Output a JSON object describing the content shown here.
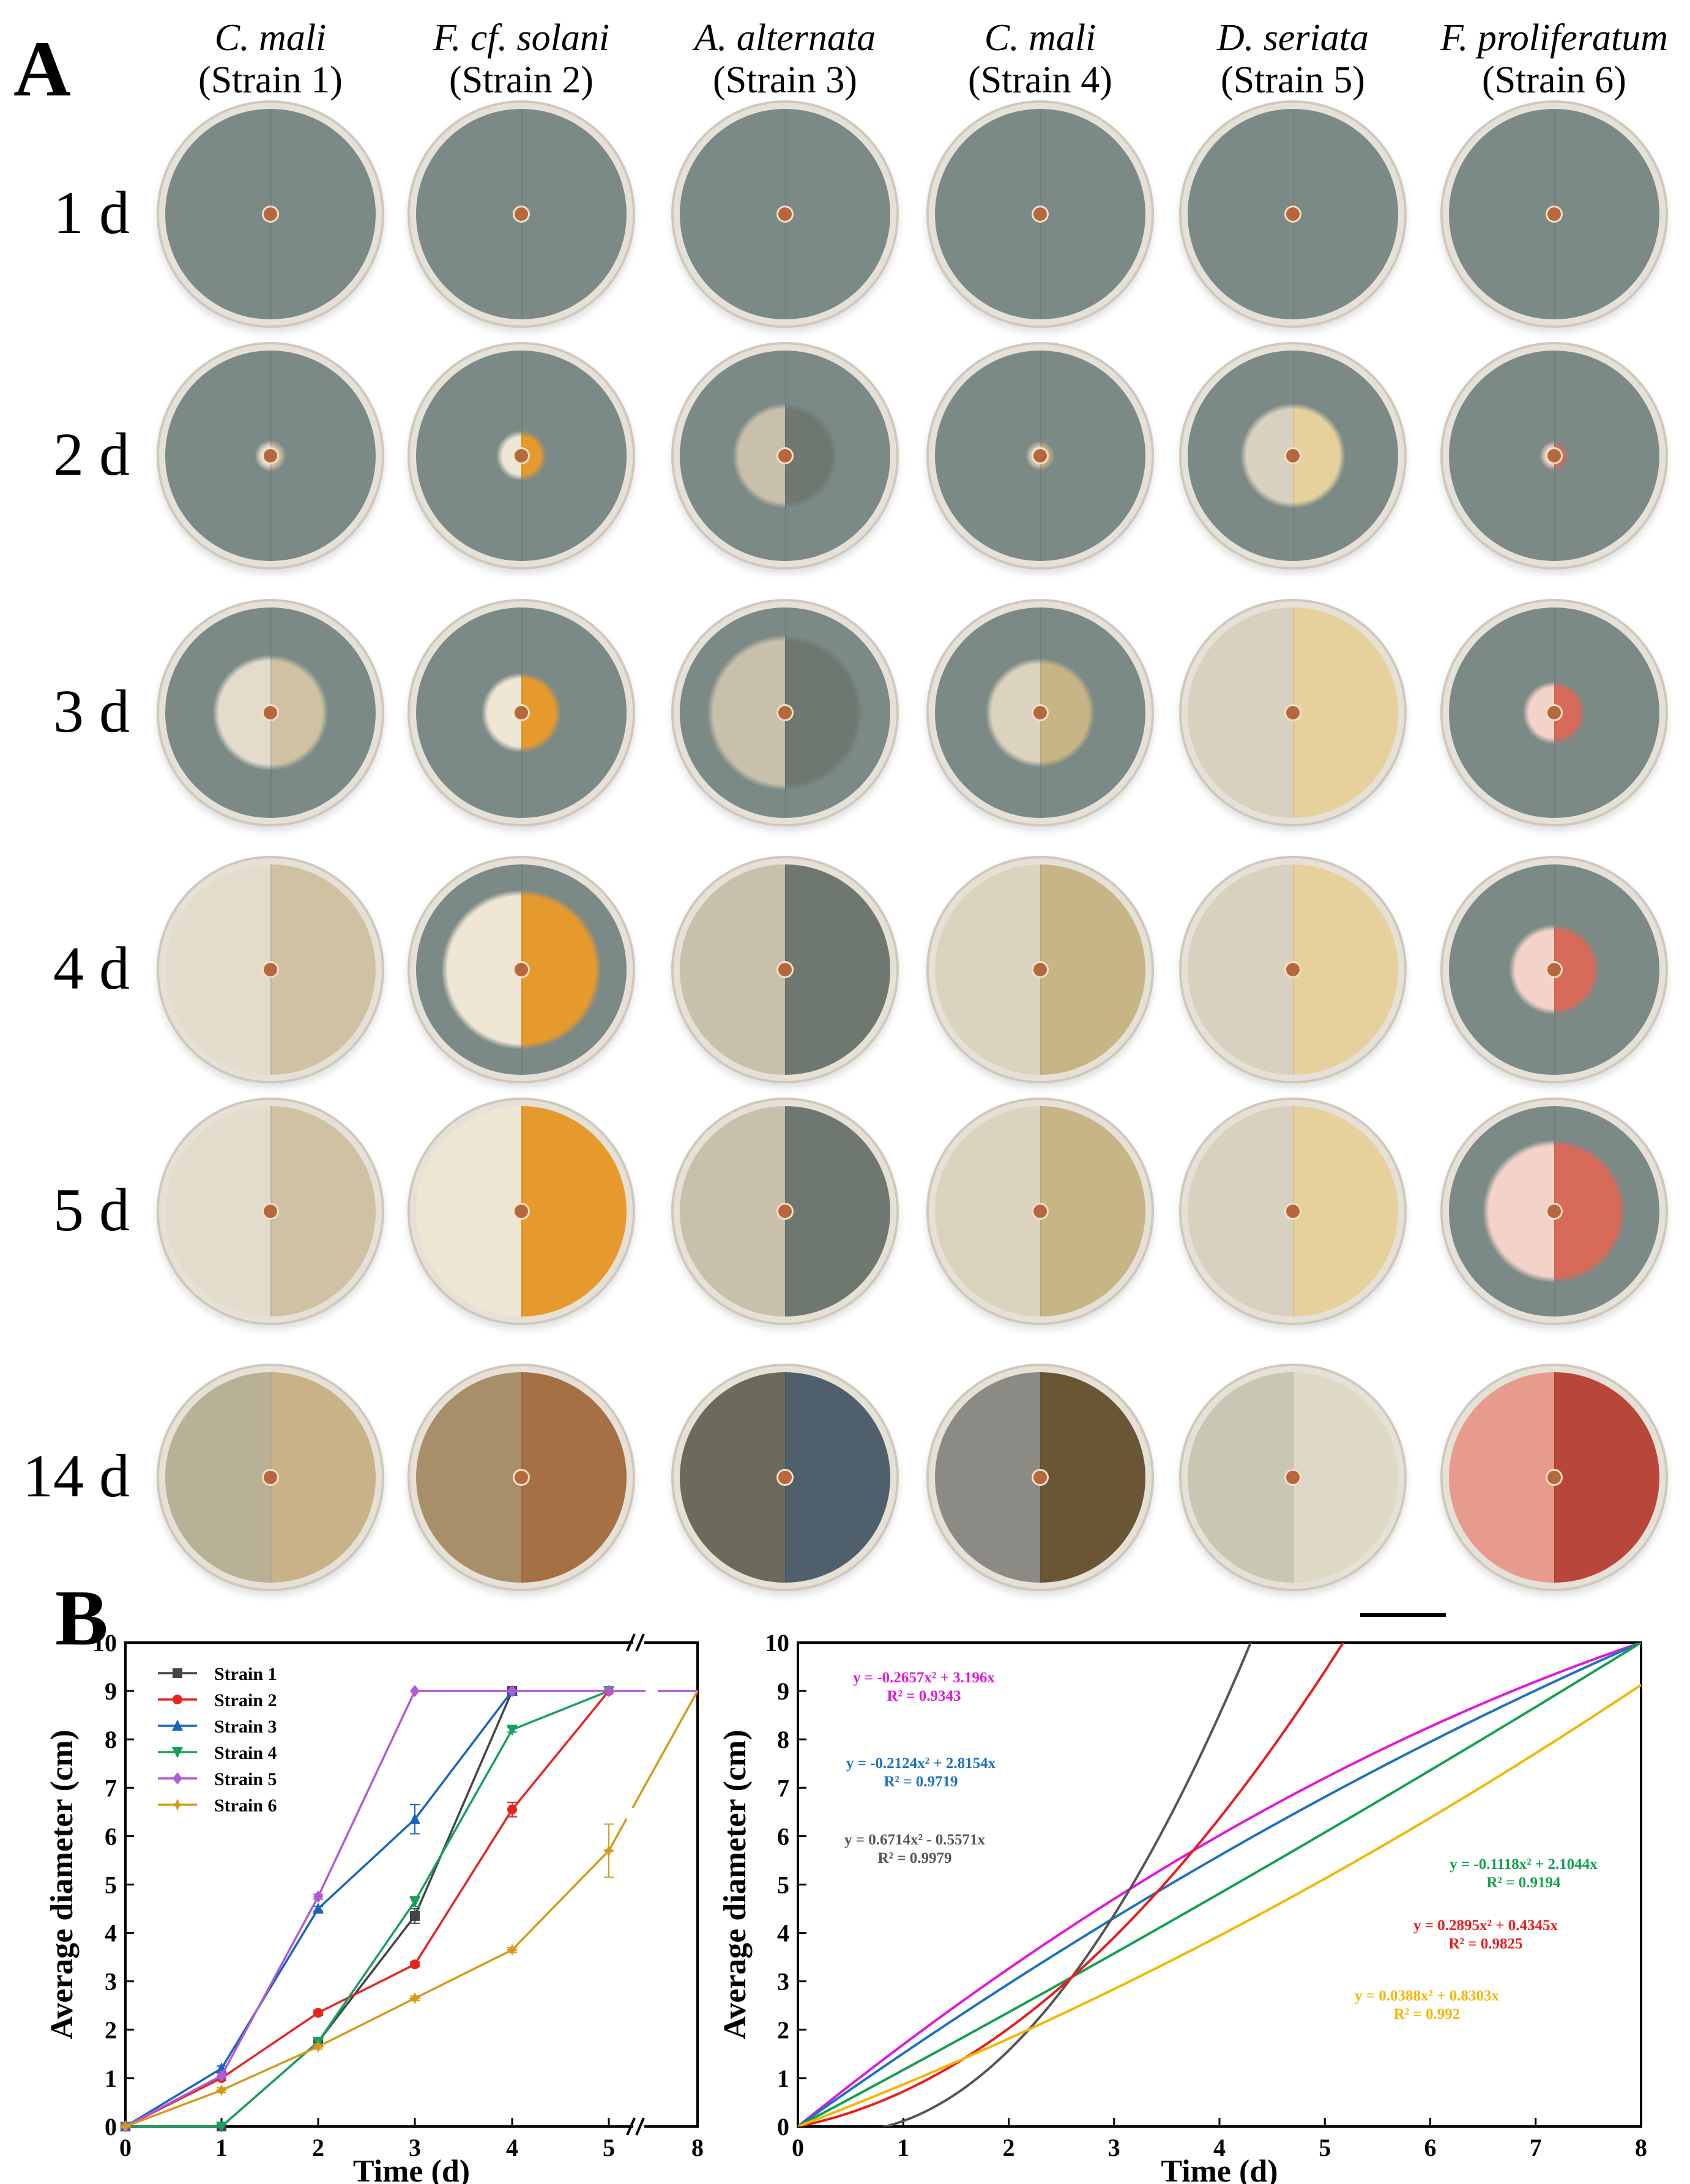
{
  "panel_a": {
    "letter": "A",
    "columns": [
      {
        "species": "C. mali",
        "strain": "(Strain 1)"
      },
      {
        "species": "F. cf. solani",
        "strain": "(Strain 2)"
      },
      {
        "species": "A. alternata",
        "strain": "(Strain 3)"
      },
      {
        "species": "C. mali",
        "strain": "(Strain 4)"
      },
      {
        "species": "D. seriata",
        "strain": "(Strain 5)"
      },
      {
        "species": "F. proliferatum",
        "strain": "(Strain 6)"
      }
    ],
    "rows": [
      "1 d",
      "2 d",
      "3 d",
      "4 d",
      "5 d",
      "14 d"
    ],
    "colony_colors": [
      {
        "front": "#e3dccd",
        "reverse": "#cfc1a2"
      },
      {
        "front": "#efe6d4",
        "reverse": "#e69a2d"
      },
      {
        "front": "#c9c0ab",
        "reverse": "#6f7870"
      },
      {
        "front": "#dcd3bf",
        "reverse": "#c8b585"
      },
      {
        "front": "#d9d1bf",
        "reverse": "#e6d19c"
      },
      {
        "front": "#f2d2c9",
        "reverse": "#d86a5a"
      }
    ],
    "day14_colors": [
      {
        "front": "#b9b195",
        "reverse": "#c9b287"
      },
      {
        "front": "#a98e6a",
        "reverse": "#a57043"
      },
      {
        "front": "#6e6a5b",
        "reverse": "#4f5f6c"
      },
      {
        "front": "#8b8a84",
        "reverse": "#6a5635"
      },
      {
        "front": "#c9c6b4",
        "reverse": "#ddd9c6"
      },
      {
        "front": "#e79b8d",
        "reverse": "#b8463b"
      }
    ],
    "medium_color": "#7b8a86",
    "growth_fraction": [
      [
        0.05,
        0.05,
        0.06,
        0.05,
        0.06,
        0.05
      ],
      [
        0.15,
        0.24,
        0.5,
        0.14,
        0.5,
        0.14
      ],
      [
        0.55,
        0.38,
        0.74,
        0.52,
        1.0,
        0.3
      ],
      [
        1.0,
        0.76,
        1.0,
        1.0,
        1.0,
        0.43
      ],
      [
        1.0,
        1.0,
        1.0,
        1.0,
        1.0,
        0.68
      ],
      [
        1.0,
        1.0,
        1.0,
        1.0,
        1.0,
        1.0
      ]
    ]
  },
  "panel_b": {
    "letter": "B",
    "chart_data": [
      {
        "type": "line",
        "xlabel": "Time (d)",
        "ylabel": "Average diameter (cm)",
        "xlim": [
          0,
          8
        ],
        "ylim": [
          0,
          10
        ],
        "x_ticks": [
          "0",
          "1",
          "2",
          "3",
          "4",
          "5",
          "8"
        ],
        "y_ticks": [
          "0",
          "1",
          "2",
          "3",
          "4",
          "5",
          "6",
          "7",
          "8",
          "9",
          "10"
        ],
        "axis_break": "between 5 and 8",
        "legend_position": "top-left",
        "series": [
          {
            "name": "Strain 1",
            "color": "#444444",
            "marker": "square",
            "x": [
              0,
              1,
              2,
              3,
              4
            ],
            "y": [
              0,
              0,
              1.75,
              4.35,
              9.0
            ],
            "err": [
              0,
              0,
              0.05,
              0.15,
              0
            ]
          },
          {
            "name": "Strain 2",
            "color": "#e8221f",
            "marker": "circle",
            "x": [
              0,
              1,
              2,
              3,
              4,
              5
            ],
            "y": [
              0,
              1.0,
              2.35,
              3.35,
              6.55,
              9.0
            ],
            "err": [
              0,
              0.05,
              0.05,
              0.05,
              0.15,
              0
            ]
          },
          {
            "name": "Strain 3",
            "color": "#1565c0",
            "marker": "triangle",
            "x": [
              0,
              1,
              2,
              3,
              4
            ],
            "y": [
              0,
              1.2,
              4.5,
              6.35,
              9.0
            ],
            "err": [
              0,
              0.05,
              0.05,
              0.3,
              0
            ]
          },
          {
            "name": "Strain 4",
            "color": "#17a05d",
            "marker": "triangle-down",
            "x": [
              0,
              1,
              2,
              3,
              4,
              5
            ],
            "y": [
              0,
              0,
              1.75,
              4.65,
              8.2,
              9.0
            ],
            "err": [
              0,
              0,
              0.05,
              0.1,
              0.05,
              0
            ]
          },
          {
            "name": "Strain 5",
            "color": "#b15ad6",
            "marker": "diamond",
            "x": [
              0,
              1,
              2,
              3,
              4,
              5,
              8
            ],
            "y": [
              0,
              1.05,
              4.75,
              9.0,
              9.0,
              9.0,
              9.0
            ],
            "err": [
              0,
              0.05,
              0.05,
              0,
              0,
              0,
              0
            ]
          },
          {
            "name": "Strain 6",
            "color": "#d49a1a",
            "marker": "star",
            "x": [
              0,
              1,
              2,
              3,
              4,
              5,
              8
            ],
            "y": [
              0,
              0.75,
              1.65,
              2.65,
              3.65,
              5.7,
              9.0
            ],
            "err": [
              0,
              0.05,
              0.05,
              0.05,
              0.05,
              0.55,
              0
            ]
          }
        ]
      },
      {
        "type": "line",
        "xlabel": "Time (d)",
        "ylabel": "Average diameter (cm)",
        "xlim": [
          0,
          8
        ],
        "ylim": [
          0,
          10
        ],
        "x_ticks": [
          "0",
          "1",
          "2",
          "3",
          "4",
          "5",
          "6",
          "7",
          "8"
        ],
        "y_ticks": [
          "0",
          "1",
          "2",
          "3",
          "4",
          "5",
          "6",
          "7",
          "8",
          "9",
          "10"
        ],
        "fits": [
          {
            "color": "#e019d9",
            "a": -0.2657,
            "b": 3.196,
            "equation": "y = -0.2657x² + 3.196x",
            "r2": "R² = 0.9343",
            "t_at": "reciprocal"
          },
          {
            "color": "#1e73be",
            "a": -0.2124,
            "b": 2.8154,
            "equation": "y = -0.2124x² + 2.8154x",
            "r2": "R² = 0.9719",
            "t_at": "reciprocal"
          },
          {
            "color": "#555555",
            "a": 0.6714,
            "b": -0.5571,
            "equation": "y = 0.6714x² - 0.5571x",
            "r2": "R² = 0.9979",
            "t_at": "direct"
          },
          {
            "color": "#14a050",
            "a": -0.1118,
            "b": 2.1044,
            "equation": "y = -0.1118x² + 2.1044x",
            "r2": "R² = 0.9194",
            "t_at": "reciprocal"
          },
          {
            "color": "#e81e1e",
            "a": 0.2895,
            "b": 0.4345,
            "equation": "y = 0.2895x² + 0.4345x",
            "r2": "R² = 0.9825",
            "t_at": "direct"
          },
          {
            "color": "#f2b705",
            "a": 0.0388,
            "b": 0.8303,
            "equation": "y = 0.0388x² + 0.8303x",
            "r2": "R² = 0.992",
            "t_at": "direct"
          }
        ]
      }
    ]
  }
}
